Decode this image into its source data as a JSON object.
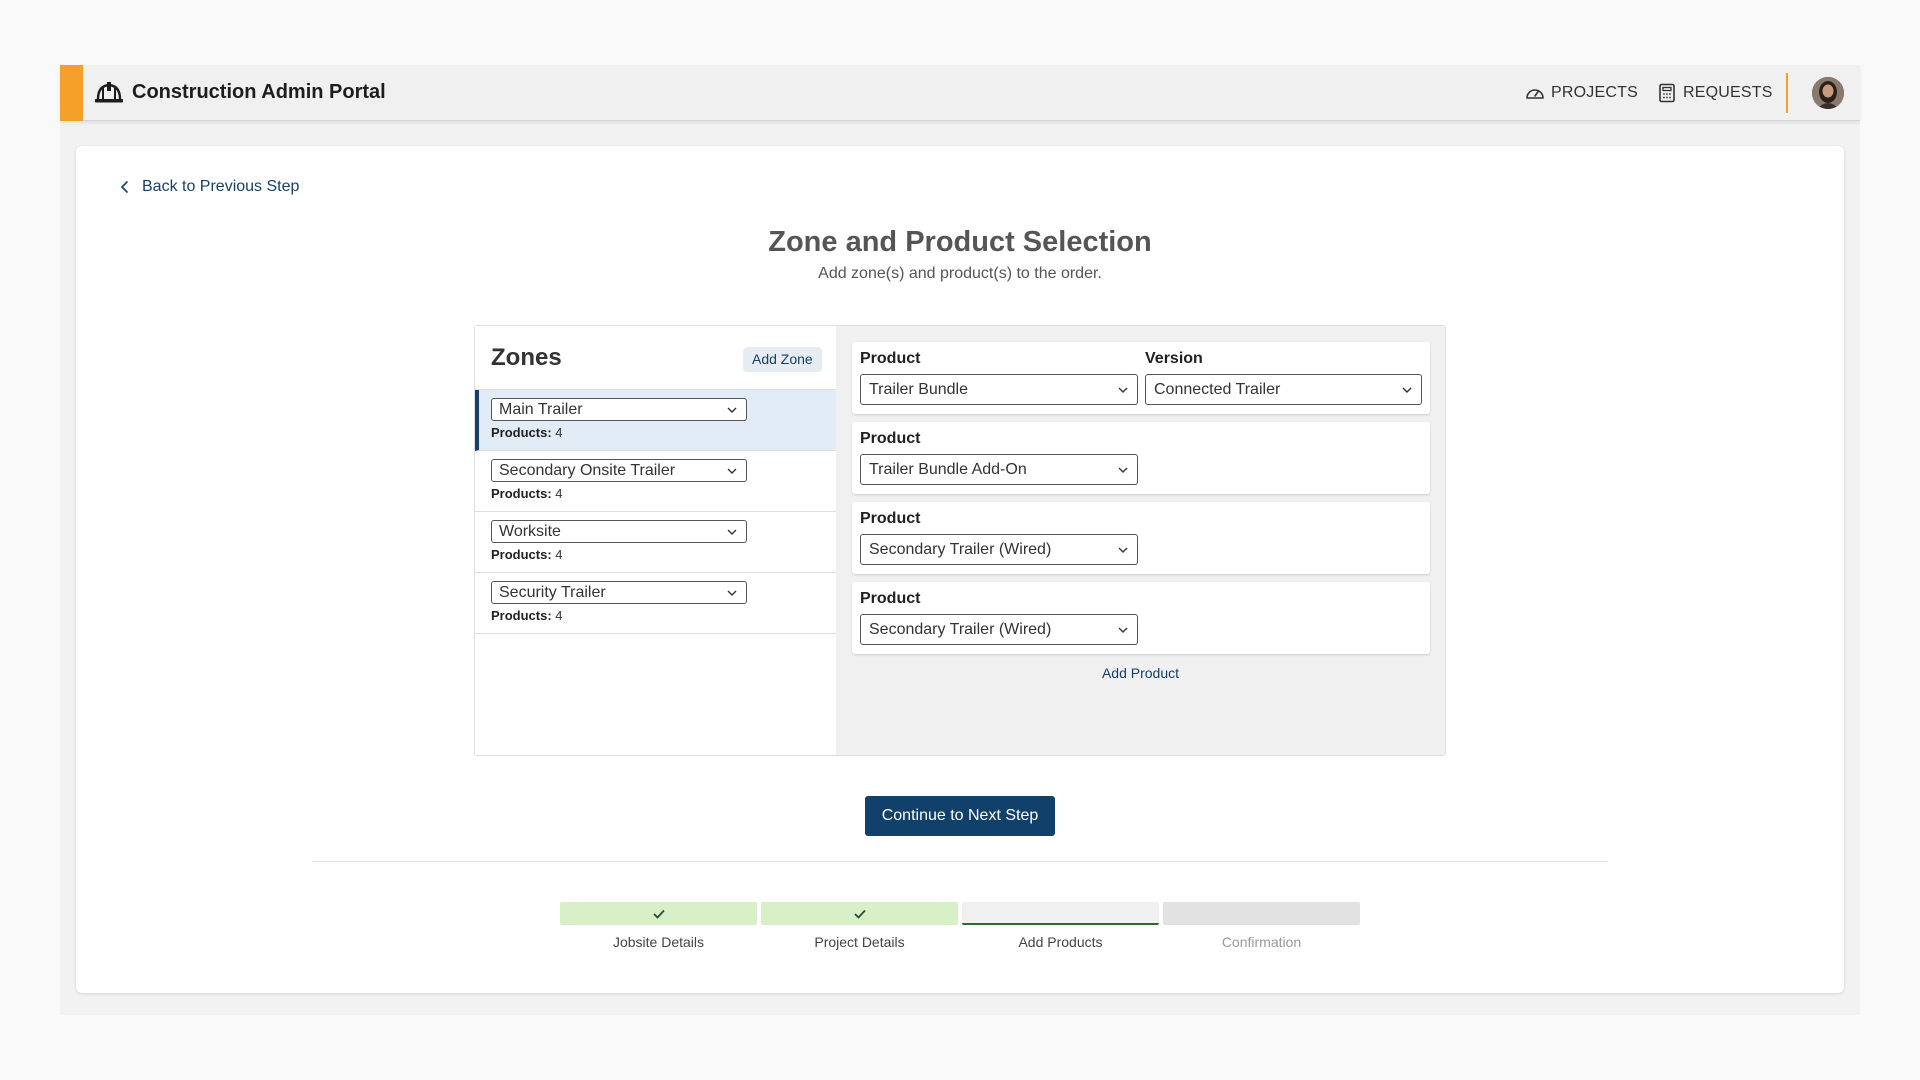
{
  "header": {
    "title": "Construction Admin Portal",
    "nav": [
      {
        "label": "PROJECTS",
        "icon": "gauge-icon"
      },
      {
        "label": "REQUESTS",
        "icon": "calculator-icon"
      }
    ],
    "accent_color": "#f6a02c"
  },
  "back_link": "Back to Previous Step",
  "page": {
    "title": "Zone and Product Selection",
    "subtitle": "Add zone(s) and product(s) to the order."
  },
  "zones": {
    "heading": "Zones",
    "add_label": "Add Zone",
    "count_label": "Products:",
    "items": [
      {
        "name": "Main Trailer",
        "products": "4",
        "active": true
      },
      {
        "name": "Secondary Onsite Trailer",
        "products": "4"
      },
      {
        "name": "Worksite",
        "products": "4"
      },
      {
        "name": "Security Trailer",
        "products": "4"
      }
    ]
  },
  "products": {
    "product_label": "Product",
    "version_label": "Version",
    "items": [
      {
        "product": "Trailer Bundle",
        "version": "Connected Trailer"
      },
      {
        "product": "Trailer Bundle Add-On"
      },
      {
        "product": "Secondary Trailer (Wired)"
      },
      {
        "product": "Secondary Trailer (Wired)"
      }
    ],
    "add_label": "Add Product"
  },
  "continue_label": "Continue to Next Step",
  "stepper": [
    {
      "label": "Jobsite Details",
      "state": "done"
    },
    {
      "label": "Project Details",
      "state": "done"
    },
    {
      "label": "Add Products",
      "state": "current"
    },
    {
      "label": "Confirmation",
      "state": "pending"
    }
  ],
  "colors": {
    "primary": "#11416b",
    "step_done": "#d8f0c8"
  }
}
